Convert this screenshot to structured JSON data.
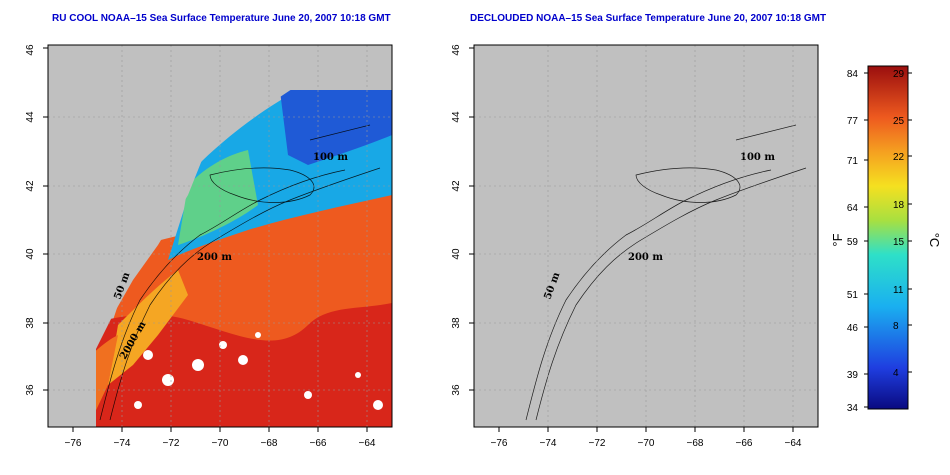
{
  "panels": [
    {
      "id": "raw",
      "title": "RU COOL NOAA–15 Sea Surface Temperature June 20, 2007 10:18 GMT"
    },
    {
      "id": "declouded",
      "title": "DECLOUDED NOAA–15 Sea Surface Temperature June 20, 2007 10:18 GMT"
    }
  ],
  "map": {
    "x_ticks": [
      "−76",
      "−74",
      "−72",
      "−70",
      "−68",
      "−66",
      "−64"
    ],
    "y_ticks": [
      "36",
      "38",
      "40",
      "42",
      "44",
      "46"
    ],
    "contour_labels": [
      "100 m",
      "100 m",
      "200 m",
      "50 m",
      "50 m",
      "2000 m"
    ],
    "colors": {
      "land": "#c0c0c0",
      "cloud": "#ffffff",
      "gulf_stream": "#d8261a",
      "warm": "#ee5a1f",
      "mid": "#f5a623",
      "cool": "#5fd08a",
      "cold": "#18a8e6",
      "colder": "#1f5ad6"
    }
  },
  "colorbar": {
    "f_label": "°F",
    "c_label": "°C",
    "f_ticks": [
      "84",
      "77",
      "71",
      "64",
      "59",
      "51",
      "46",
      "39",
      "34"
    ],
    "c_ticks": [
      "29",
      "25",
      "22",
      "18",
      "15",
      "11",
      "8",
      "4"
    ]
  }
}
